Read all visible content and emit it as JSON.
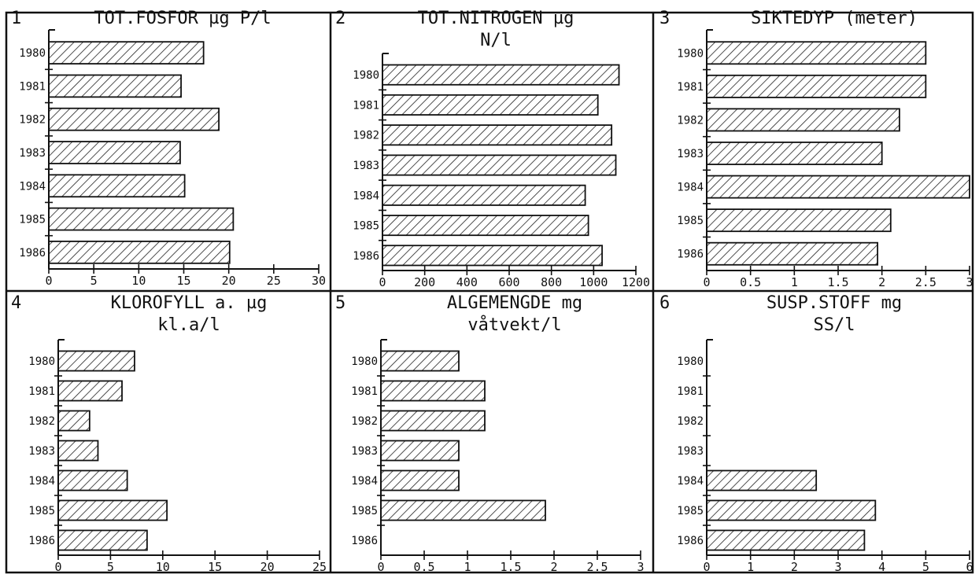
{
  "chart_data": [
    {
      "type": "bar",
      "orientation": "horizontal",
      "panel_number": "1",
      "title_lines": [
        "TOT.FOSFOR  µg P/l"
      ],
      "categories": [
        "1980",
        "1981",
        "1982",
        "1983",
        "1984",
        "1985",
        "1986"
      ],
      "values": [
        17.2,
        14.7,
        18.9,
        14.6,
        15.1,
        20.5,
        20.1
      ],
      "xlim": [
        0,
        30
      ],
      "xticks": [
        "0",
        "5",
        "10",
        "15",
        "20",
        "25",
        "30"
      ],
      "hatch_color": "#222222"
    },
    {
      "type": "bar",
      "orientation": "horizontal",
      "panel_number": "2",
      "title_lines": [
        "TOT.NITROGEN  µg",
        "N/l"
      ],
      "categories": [
        "1980",
        "1981",
        "1982",
        "1983",
        "1984",
        "1985",
        "1986"
      ],
      "values": [
        1120,
        1020,
        1085,
        1105,
        960,
        975,
        1040
      ],
      "xlim": [
        0,
        1200
      ],
      "xticks": [
        "0",
        "200",
        "400",
        "600",
        "800",
        "1000",
        "1200"
      ],
      "hatch_color": "#222222"
    },
    {
      "type": "bar",
      "orientation": "horizontal",
      "panel_number": "3",
      "title_lines": [
        "SIKTEDYP   (meter)"
      ],
      "categories": [
        "1980",
        "1981",
        "1982",
        "1983",
        "1984",
        "1985",
        "1986"
      ],
      "values": [
        2.5,
        2.5,
        2.2,
        2.0,
        3.0,
        2.1,
        1.95
      ],
      "xlim": [
        0,
        3
      ],
      "xticks": [
        "0",
        "0.5",
        "1",
        "1.5",
        "2",
        "2.5",
        "3"
      ],
      "hatch_color": "#222222"
    },
    {
      "type": "bar",
      "orientation": "horizontal",
      "panel_number": "4",
      "title_lines": [
        "KLOROFYLL a.  µg",
        "kl.a/l"
      ],
      "categories": [
        "1980",
        "1981",
        "1982",
        "1983",
        "1984",
        "1985",
        "1986"
      ],
      "values": [
        7.3,
        6.1,
        3.0,
        3.8,
        6.6,
        10.4,
        8.5
      ],
      "xlim": [
        0,
        25
      ],
      "xticks": [
        "0",
        "5",
        "10",
        "15",
        "20",
        "25"
      ],
      "hatch_color": "#222222"
    },
    {
      "type": "bar",
      "orientation": "horizontal",
      "panel_number": "5",
      "title_lines": [
        "ALGEMENGDE   mg",
        "våtvekt/l"
      ],
      "categories": [
        "1980",
        "1981",
        "1982",
        "1983",
        "1984",
        "1985",
        "1986"
      ],
      "values": [
        0.9,
        1.2,
        1.2,
        0.9,
        0.9,
        1.9,
        null
      ],
      "xlim": [
        0,
        3
      ],
      "xticks": [
        "0",
        "0.5",
        "1",
        "1.5",
        "2",
        "2.5",
        "3"
      ],
      "hatch_color": "#222222"
    },
    {
      "type": "bar",
      "orientation": "horizontal",
      "panel_number": "6",
      "title_lines": [
        "SUSP.STOFF   mg",
        "SS/l"
      ],
      "categories": [
        "1980",
        "1981",
        "1982",
        "1983",
        "1984",
        "1985",
        "1986"
      ],
      "values": [
        null,
        null,
        null,
        null,
        2.5,
        3.85,
        3.6
      ],
      "xlim": [
        0,
        6
      ],
      "xticks": [
        "0",
        "1",
        "2",
        "3",
        "4",
        "5",
        "6"
      ],
      "hatch_color": "#222222"
    }
  ]
}
